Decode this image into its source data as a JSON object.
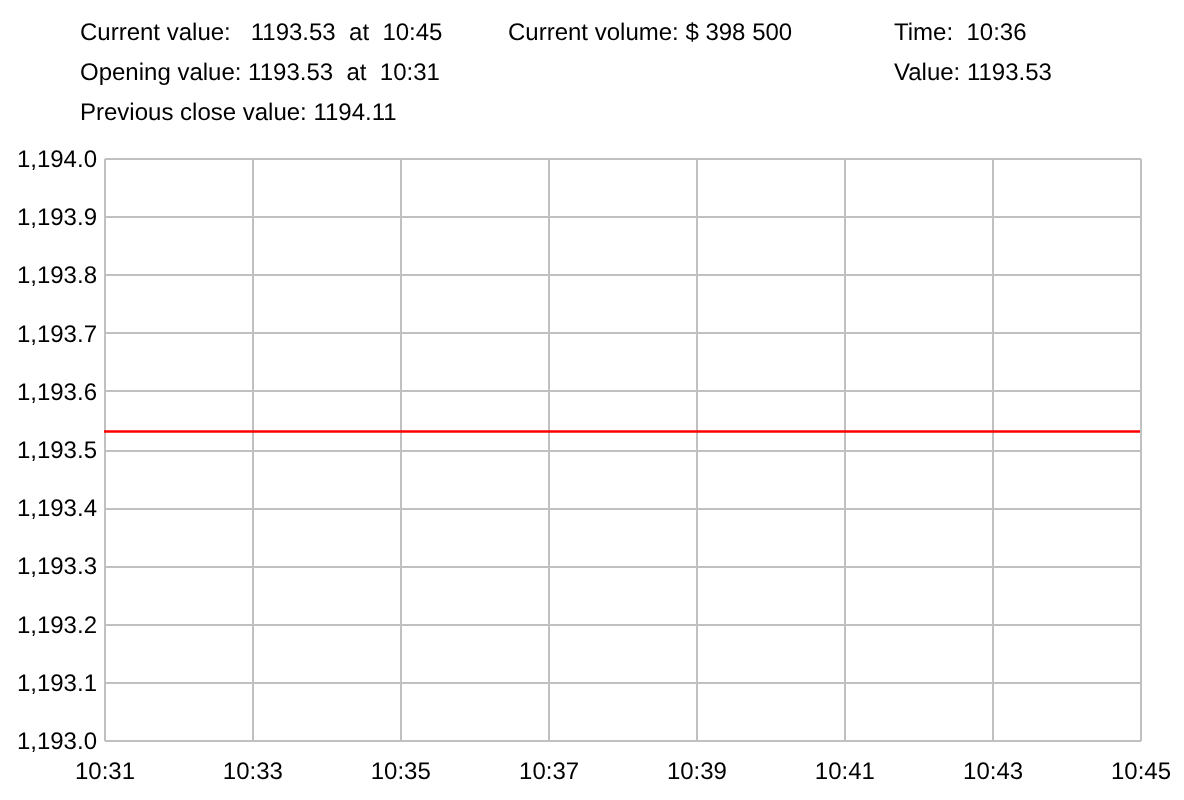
{
  "chart_data": {
    "type": "line",
    "annotations": [
      "Current value:   1193.53  at  10:45",
      "Current volume: $ 398 500",
      "Time:  10:36",
      "Opening value: 1193.53  at  10:31",
      "Value: 1193.53",
      "Previous close value: 1194.11"
    ],
    "x": [
      10.5167,
      10.75
    ],
    "series": [
      {
        "color": "#ff0000",
        "values": [
          1193.53,
          1193.53
        ]
      }
    ],
    "xlim": [
      10.5167,
      10.75
    ],
    "xticks": [
      {
        "value": 10.5167,
        "label": "10:31"
      },
      {
        "value": 10.55,
        "label": "10:33"
      },
      {
        "value": 10.5833,
        "label": "10:35"
      },
      {
        "value": 10.6167,
        "label": "10:37"
      },
      {
        "value": 10.65,
        "label": "10:39"
      },
      {
        "value": 10.6833,
        "label": "10:41"
      },
      {
        "value": 10.7167,
        "label": "10:43"
      },
      {
        "value": 10.75,
        "label": "10:45"
      }
    ],
    "ylim": [
      1193.0,
      1194.0
    ],
    "yticks": [
      {
        "value": 1193.0,
        "label": "1,193.0"
      },
      {
        "value": 1193.1,
        "label": "1,193.1"
      },
      {
        "value": 1193.2,
        "label": "1,193.2"
      },
      {
        "value": 1193.3,
        "label": "1,193.3"
      },
      {
        "value": 1193.4,
        "label": "1,193.4"
      },
      {
        "value": 1193.5,
        "label": "1,193.5"
      },
      {
        "value": 1193.6,
        "label": "1,193.6"
      },
      {
        "value": 1193.7,
        "label": "1,193.7"
      },
      {
        "value": 1193.8,
        "label": "1,193.8"
      },
      {
        "value": 1193.9,
        "label": "1,193.9"
      },
      {
        "value": 1194.0,
        "label": "1,194.0"
      }
    ],
    "grid": true
  }
}
